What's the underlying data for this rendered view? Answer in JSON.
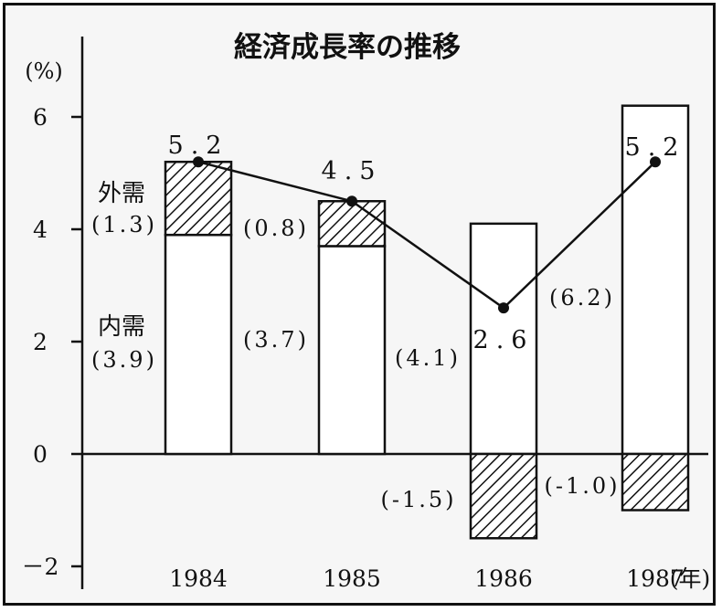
{
  "chart_data": {
    "type": "bar",
    "title": "経済成長率の推移",
    "ylabel": "(%)",
    "xlabel": "",
    "x_unit": "(年)",
    "ylim": [
      -2,
      7
    ],
    "yticks": [
      {
        "value": 6,
        "label": "6"
      },
      {
        "value": 4,
        "label": "4"
      },
      {
        "value": 2,
        "label": "2"
      },
      {
        "value": 0,
        "label": "0"
      },
      {
        "value": -2,
        "label": "－2"
      }
    ],
    "categories": [
      "1984",
      "1985",
      "1986",
      "1987"
    ],
    "series": [
      {
        "name": "内需",
        "values": [
          3.9,
          3.7,
          4.1,
          6.2
        ],
        "labels": [
          "(3.9)",
          "(3.7)",
          "(4.1)",
          "(6.2)"
        ]
      },
      {
        "name": "外需",
        "values": [
          1.3,
          0.8,
          -1.5,
          -1.0
        ],
        "labels": [
          "(1.3)",
          "(0.8)",
          "(-1.5)",
          "(-1.0)"
        ]
      }
    ],
    "line": {
      "name": "経済成長率",
      "values": [
        5.2,
        4.5,
        2.6,
        5.2
      ],
      "labels": [
        "5.2",
        "4.5",
        "2.6",
        "5.2"
      ]
    },
    "legend": {
      "external": "外需",
      "domestic": "内需"
    },
    "colors": {
      "axis": "#111111",
      "bar_fill": "#ffffff",
      "hatch": "#111111",
      "background": "#f6f6f6"
    }
  }
}
